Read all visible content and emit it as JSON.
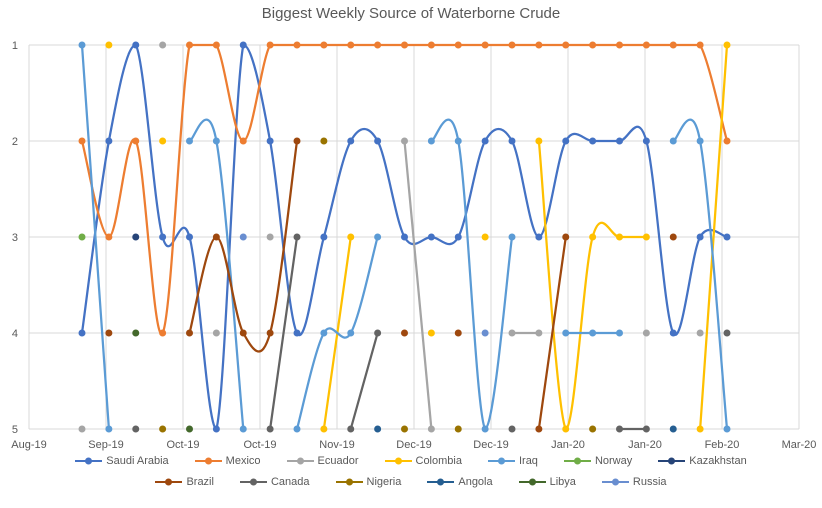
{
  "chart_data": {
    "type": "line",
    "title": "Biggest Weekly Source of Waterborne Crude",
    "grid": true,
    "smooth_lines": true,
    "y_axis_inverted": true,
    "y_tick_labels": [
      "1",
      "2",
      "3",
      "4",
      "5"
    ],
    "x_tick_labels": [
      "Aug-19",
      "Sep-19",
      "Oct-19",
      "Oct-19",
      "Nov-19",
      "Dec-19",
      "Dec-19",
      "Jan-20",
      "Jan-20",
      "Feb-20",
      "Mar-20"
    ],
    "weeks": 25,
    "legend_position": "bottom",
    "legend_rows": [
      [
        "Saudi Arabia",
        "Mexico",
        "Ecuador",
        "Colombia",
        "Iraq",
        "Norway",
        "Kazakhstan"
      ],
      [
        "Brazil",
        "Canada",
        "Nigeria",
        "Angola",
        "Libya",
        "Russia"
      ]
    ],
    "colors": {
      "text": "#595959",
      "gridline": "#D9D9D9"
    },
    "series": [
      {
        "name": "Saudi Arabia",
        "color": "#4472C4",
        "ranks": [
          4,
          2,
          1,
          3,
          3,
          5,
          1,
          2,
          4,
          3,
          2,
          2,
          3,
          3,
          3,
          2,
          2,
          3,
          2,
          2,
          2,
          2,
          4,
          3,
          3
        ]
      },
      {
        "name": "Mexico",
        "color": "#ED7D31",
        "ranks": [
          2,
          3,
          2,
          4,
          1,
          1,
          2,
          1,
          1,
          1,
          1,
          1,
          1,
          1,
          1,
          1,
          1,
          1,
          1,
          1,
          1,
          1,
          1,
          1,
          2
        ]
      },
      {
        "name": "Ecuador",
        "color": "#A5A5A5",
        "ranks": [
          5,
          null,
          null,
          1,
          null,
          4,
          null,
          3,
          null,
          null,
          null,
          null,
          2,
          5,
          null,
          null,
          4,
          4,
          null,
          null,
          null,
          4,
          null,
          4,
          null
        ]
      },
      {
        "name": "Colombia",
        "color": "#FFC000",
        "ranks": [
          null,
          1,
          null,
          2,
          null,
          null,
          null,
          null,
          null,
          5,
          3,
          null,
          null,
          4,
          null,
          3,
          null,
          2,
          5,
          3,
          3,
          3,
          null,
          5,
          1
        ]
      },
      {
        "name": "Iraq",
        "color": "#5B9BD5",
        "ranks": [
          1,
          5,
          null,
          null,
          2,
          2,
          5,
          null,
          5,
          4,
          4,
          3,
          null,
          2,
          2,
          5,
          3,
          null,
          4,
          4,
          4,
          null,
          2,
          2,
          5
        ]
      },
      {
        "name": "Norway",
        "color": "#70AD47",
        "ranks": [
          3,
          null,
          null,
          null,
          null,
          null,
          null,
          null,
          null,
          null,
          null,
          null,
          null,
          null,
          null,
          null,
          null,
          null,
          null,
          null,
          null,
          null,
          null,
          null,
          null
        ]
      },
      {
        "name": "Kazakhstan",
        "color": "#264478",
        "ranks": [
          null,
          null,
          3,
          null,
          null,
          null,
          null,
          null,
          null,
          null,
          null,
          null,
          null,
          null,
          null,
          null,
          null,
          null,
          null,
          null,
          null,
          null,
          null,
          null,
          null
        ]
      },
      {
        "name": "Brazil",
        "color": "#9E480E",
        "ranks": [
          null,
          4,
          null,
          null,
          4,
          3,
          4,
          4,
          2,
          null,
          null,
          null,
          4,
          null,
          4,
          null,
          null,
          5,
          3,
          null,
          null,
          null,
          3,
          null,
          null
        ]
      },
      {
        "name": "Canada",
        "color": "#636363",
        "ranks": [
          null,
          null,
          5,
          null,
          null,
          null,
          null,
          5,
          3,
          null,
          5,
          4,
          null,
          null,
          null,
          null,
          5,
          null,
          null,
          null,
          5,
          5,
          null,
          null,
          4
        ]
      },
      {
        "name": "Nigeria",
        "color": "#997300",
        "ranks": [
          null,
          null,
          null,
          5,
          null,
          null,
          null,
          null,
          null,
          2,
          null,
          null,
          5,
          null,
          5,
          null,
          null,
          null,
          null,
          5,
          null,
          null,
          null,
          null,
          null
        ]
      },
      {
        "name": "Angola",
        "color": "#255E91",
        "ranks": [
          null,
          null,
          null,
          null,
          null,
          null,
          null,
          null,
          null,
          null,
          null,
          5,
          null,
          null,
          null,
          null,
          null,
          null,
          null,
          null,
          null,
          null,
          5,
          null,
          null
        ]
      },
      {
        "name": "Libya",
        "color": "#43682B",
        "ranks": [
          null,
          null,
          4,
          null,
          5,
          null,
          null,
          null,
          null,
          null,
          null,
          null,
          null,
          null,
          null,
          null,
          null,
          null,
          null,
          null,
          null,
          null,
          null,
          null,
          null
        ]
      },
      {
        "name": "Russia",
        "color": "#698ED0",
        "ranks": [
          null,
          null,
          null,
          null,
          null,
          null,
          3,
          null,
          null,
          null,
          null,
          null,
          null,
          null,
          null,
          4,
          null,
          null,
          null,
          null,
          null,
          null,
          null,
          null,
          null
        ]
      }
    ]
  }
}
